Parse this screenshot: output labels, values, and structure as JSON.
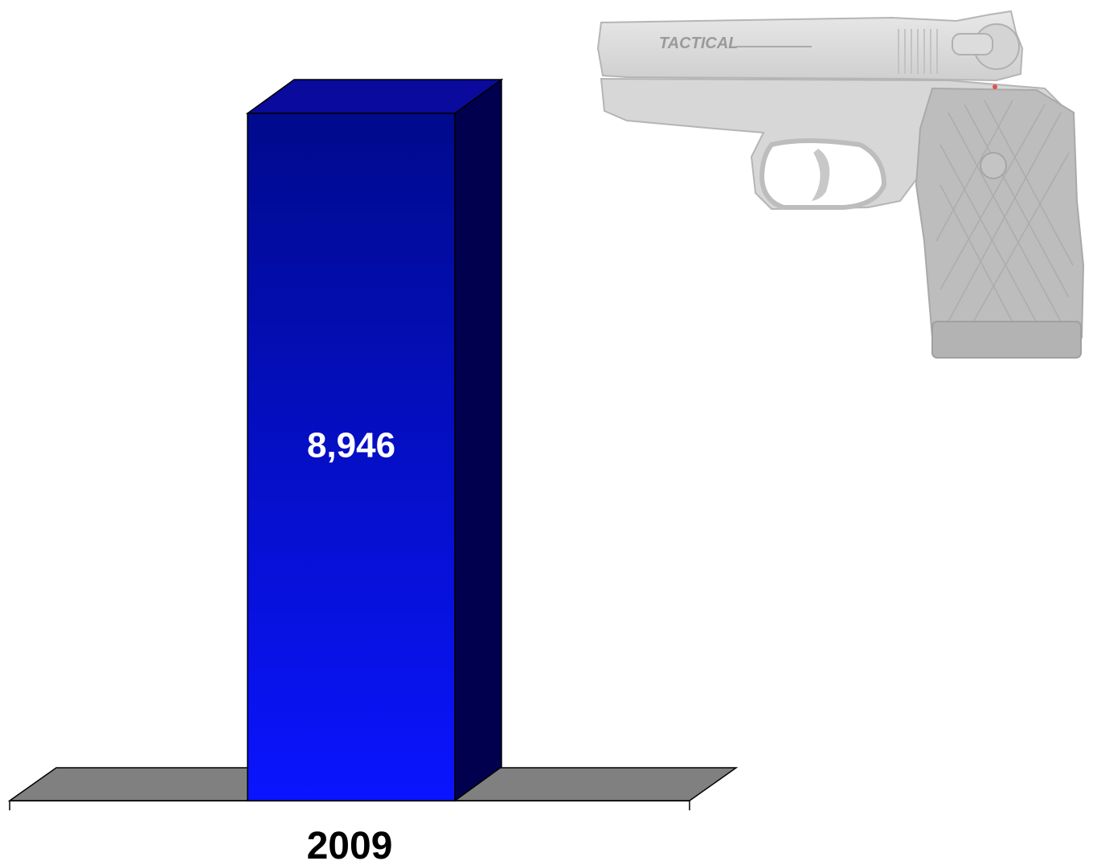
{
  "chart_data": {
    "type": "bar",
    "categories": [
      "2009"
    ],
    "values": [
      8946
    ],
    "value_labels": [
      "8,946"
    ],
    "ylim": [
      0,
      8946
    ],
    "grid": false,
    "legend": "none"
  },
  "image": {
    "icon": "pistol-icon"
  },
  "colors": {
    "bar_front_top": "#000a8c",
    "bar_front_bottom": "#0a14ff",
    "bar_side": "#00004f",
    "bar_top": "#0a0a9c",
    "floor": "#808080",
    "pistol_metal": "#d9d9d9",
    "pistol_grip": "#bdbdbd"
  }
}
